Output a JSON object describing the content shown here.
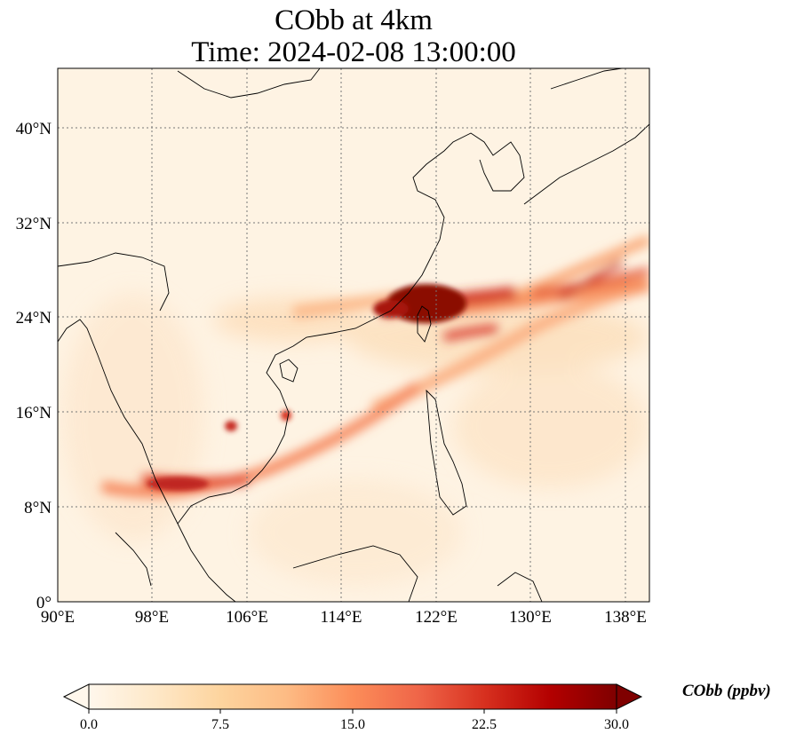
{
  "title": {
    "line1": "CObb at 4km",
    "line2": "Time: 2024-02-08 13:00:00"
  },
  "map": {
    "region": "East and Southeast Asia",
    "lon_range": [
      90,
      140
    ],
    "lat_range": [
      0,
      45
    ],
    "gridlines": "dotted",
    "x_ticks": [
      "90°E",
      "98°E",
      "106°E",
      "114°E",
      "122°E",
      "130°E",
      "138°E"
    ],
    "y_ticks": [
      "0°",
      "8°N",
      "16°N",
      "24°N",
      "32°N",
      "40°N"
    ],
    "field": "CObb",
    "colormap": "OrRd"
  },
  "colorbar": {
    "label": "CObb (ppbv)",
    "ticks": [
      "0.0",
      "7.5",
      "15.0",
      "22.5",
      "30.0"
    ],
    "range": [
      0,
      30
    ],
    "extend": "both",
    "colors": [
      "#fff7ec",
      "#fee8c8",
      "#fdd49e",
      "#fdbb84",
      "#fc8d59",
      "#ef6548",
      "#d7301f",
      "#b30000",
      "#7f0000"
    ]
  }
}
